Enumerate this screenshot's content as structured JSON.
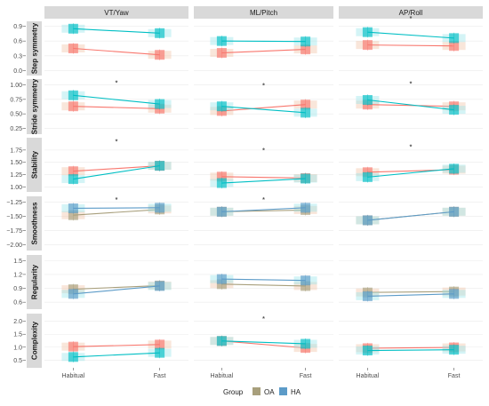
{
  "legend": {
    "title": "Group",
    "items": [
      {
        "label": "OA",
        "color": "#F8766D"
      },
      {
        "label": "HA",
        "color": "#00BFC4"
      }
    ]
  },
  "colors": {
    "OA": "#F8766D",
    "HA": "#00BFC4",
    "OA_light": "#F1C7AE",
    "HA_light": "#9FE7EC",
    "neutral_OA": "#A89F7C",
    "neutral_HA": "#5C9BC8",
    "strip_bg": "#D9D9D9",
    "marker": "#3D1E68"
  },
  "chart_data": {
    "type": "line",
    "columns": [
      "VT/Yaw",
      "ML/Pitch",
      "AP/Roll"
    ],
    "x": [
      "Habitual",
      "Fast"
    ],
    "series_names": [
      "OA",
      "HA"
    ],
    "rows": [
      {
        "label": "Step symmetry",
        "ylim": [
          -0.1,
          1.0
        ],
        "yticks": [
          0.0,
          0.3,
          0.6,
          0.9
        ],
        "tick_labels": [
          "0.0",
          "0.3",
          "0.6",
          "0.9"
        ],
        "panels": [
          {
            "OA": [
              0.45,
              0.32
            ],
            "HA": [
              0.85,
              0.76
            ],
            "sig": []
          },
          {
            "OA": [
              0.36,
              0.43
            ],
            "HA": [
              0.6,
              0.59
            ],
            "sig": []
          },
          {
            "OA": [
              0.52,
              0.5
            ],
            "HA": [
              0.78,
              0.66
            ],
            "sig": [
              {
                "x": 1.5,
                "y": 1.07,
                "symbol": "*"
              }
            ]
          }
        ]
      },
      {
        "label": "Stride symmetry",
        "ylim": [
          0.15,
          1.1
        ],
        "yticks": [
          0.25,
          0.5,
          0.75,
          1.0
        ],
        "tick_labels": [
          "0.25",
          "0.50",
          "0.75",
          "1.00"
        ],
        "panels": [
          {
            "OA": [
              0.63,
              0.59
            ],
            "HA": [
              0.82,
              0.67
            ],
            "sig": [
              {
                "x": 1.5,
                "y": 1.05,
                "symbol": "*"
              }
            ]
          },
          {
            "OA": [
              0.55,
              0.66
            ],
            "HA": [
              0.63,
              0.52
            ],
            "sig": [
              {
                "x": 1.5,
                "y": 1.0,
                "symbol": "*"
              }
            ]
          },
          {
            "OA": [
              0.66,
              0.63
            ],
            "HA": [
              0.74,
              0.57
            ],
            "sig": [
              {
                "x": 1.5,
                "y": 1.03,
                "symbol": "*"
              }
            ]
          }
        ]
      },
      {
        "label": "Stability",
        "ylim": [
          0.9,
          2.0
        ],
        "yticks": [
          1.0,
          1.25,
          1.5,
          1.75
        ],
        "tick_labels": [
          "1.00",
          "1.25",
          "1.50",
          "1.75"
        ],
        "panels": [
          {
            "OA": [
              1.32,
              1.43
            ],
            "HA": [
              1.16,
              1.43
            ],
            "sig": [
              {
                "x": 1.5,
                "y": 1.94,
                "symbol": "*"
              }
            ]
          },
          {
            "OA": [
              1.21,
              1.18
            ],
            "HA": [
              1.08,
              1.17
            ],
            "sig": [
              {
                "x": 1.5,
                "y": 1.76,
                "symbol": "*"
              }
            ]
          },
          {
            "OA": [
              1.3,
              1.35
            ],
            "HA": [
              1.2,
              1.37
            ],
            "sig": [
              {
                "x": 1.5,
                "y": 1.83,
                "symbol": "*"
              }
            ]
          }
        ]
      },
      {
        "label": "Smoothness",
        "ylim": [
          -2.1,
          -1.15
        ],
        "yticks": [
          -2.0,
          -1.75,
          -1.5,
          -1.25
        ],
        "tick_labels": [
          "−2.00",
          "−1.75",
          "−1.50",
          "−1.25"
        ],
        "panels": [
          {
            "OA": [
              -1.48,
              -1.38
            ],
            "HA": [
              -1.36,
              -1.35
            ],
            "sig": [
              {
                "x": 1.5,
                "y": -1.2,
                "symbol": "*"
              }
            ]
          },
          {
            "OA": [
              -1.42,
              -1.39
            ],
            "HA": [
              -1.42,
              -1.35
            ],
            "sig": [
              {
                "x": 1.5,
                "y": -1.2,
                "symbol": "*"
              }
            ]
          },
          {
            "OA": [
              -1.57,
              -1.42
            ],
            "HA": [
              -1.57,
              -1.42
            ],
            "sig": []
          }
        ]
      },
      {
        "label": "Regularity",
        "ylim": [
          0.45,
          1.62
        ],
        "yticks": [
          0.6,
          0.9,
          1.2,
          1.5
        ],
        "tick_labels": [
          "0.6",
          "0.9",
          "1.2",
          "1.5"
        ],
        "panels": [
          {
            "OA": [
              0.88,
              0.96
            ],
            "HA": [
              0.78,
              0.95
            ],
            "sig": []
          },
          {
            "OA": [
              0.99,
              0.95
            ],
            "HA": [
              1.1,
              1.07
            ],
            "sig": []
          },
          {
            "OA": [
              0.81,
              0.83
            ],
            "HA": [
              0.73,
              0.78
            ],
            "sig": []
          }
        ]
      },
      {
        "label": "Complexity",
        "ylim": [
          0.2,
          2.3
        ],
        "yticks": [
          0.5,
          1.0,
          1.5,
          2.0
        ],
        "tick_labels": [
          "0.5",
          "1.0",
          "1.5",
          "2.0"
        ],
        "panels": [
          {
            "OA": [
              1.02,
              1.1
            ],
            "HA": [
              0.62,
              0.78
            ],
            "sig": []
          },
          {
            "OA": [
              1.24,
              0.97
            ],
            "HA": [
              1.24,
              1.13
            ],
            "sig": [
              {
                "x": 1.5,
                "y": 2.12,
                "symbol": "*"
              }
            ]
          },
          {
            "OA": [
              0.96,
              0.99
            ],
            "HA": [
              0.87,
              0.9
            ],
            "sig": []
          }
        ]
      }
    ]
  }
}
